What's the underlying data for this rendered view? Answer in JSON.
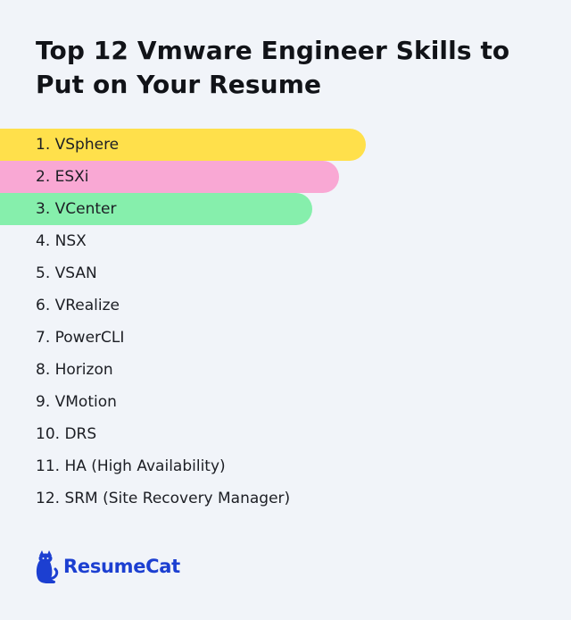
{
  "title": "Top 12 Vmware Engineer Skills to Put on Your Resume",
  "skills": [
    {
      "label": "1. VSphere",
      "highlight": "#ffe04b"
    },
    {
      "label": "2. ESXi",
      "highlight": "#f9a8d4"
    },
    {
      "label": "3. VCenter",
      "highlight": "#86efac"
    },
    {
      "label": "4. NSX"
    },
    {
      "label": "5. VSAN"
    },
    {
      "label": "6. VRealize"
    },
    {
      "label": "7. PowerCLI"
    },
    {
      "label": "8. Horizon"
    },
    {
      "label": "9. VMotion"
    },
    {
      "label": "10. DRS"
    },
    {
      "label": "11. HA (High Availability)"
    },
    {
      "label": "12. SRM (Site Recovery Manager)"
    }
  ],
  "brand": {
    "name": "ResumeCat",
    "icon": "cat-icon",
    "color": "#1c3fd1"
  },
  "colors": {
    "background": "#f1f4f9",
    "text": "#111318"
  }
}
